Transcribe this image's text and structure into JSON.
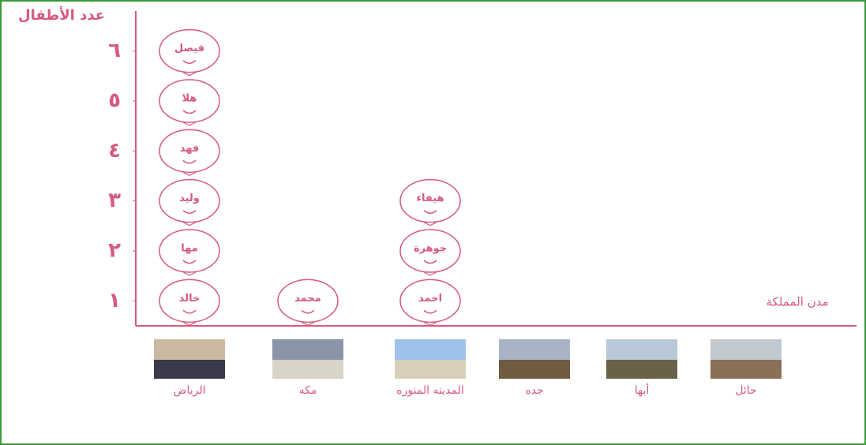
{
  "chart_data": {
    "type": "pictograph",
    "y_label": "عدد الأطفال",
    "x_label": "مدن المملكة",
    "categories": [
      "الرياض",
      "مكه",
      "المدينه المنوره",
      "جده",
      "أبها",
      "حائل"
    ],
    "values": [
      6,
      1,
      3,
      0,
      0,
      0
    ],
    "icon_labels": [
      [
        "خالد",
        "مها",
        "وليد",
        "فهد",
        "هلا",
        "فيصل"
      ],
      [
        "محمد"
      ],
      [
        "احمد",
        "جوهرة",
        "هيفاء"
      ],
      [],
      [],
      []
    ],
    "ylim": [
      0.5,
      6.8
    ],
    "yticks": [
      {
        "value": 1,
        "label": "١"
      },
      {
        "value": 2,
        "label": "٢"
      },
      {
        "value": 3,
        "label": "٣"
      },
      {
        "value": 4,
        "label": "٤"
      },
      {
        "value": 5,
        "label": "٥"
      },
      {
        "value": 6,
        "label": "٦"
      }
    ],
    "color": "#d65a7e"
  }
}
